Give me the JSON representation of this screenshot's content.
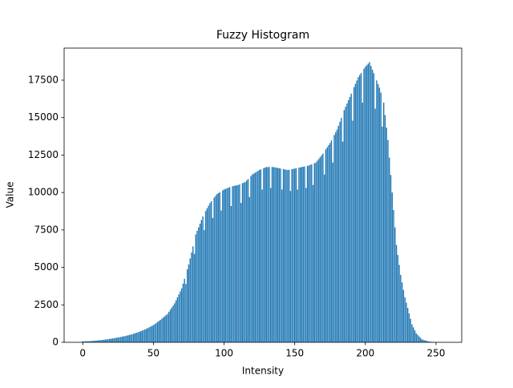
{
  "chart_data": {
    "type": "bar",
    "title": "Fuzzy Histogram",
    "xlabel": "Intensity",
    "ylabel": "Value",
    "color": "#1f77b4",
    "xlim": [
      -13.19,
      268.19
    ],
    "ylim": [
      0,
      19640
    ],
    "xticks": [
      0,
      50,
      100,
      150,
      200,
      250
    ],
    "yticks": [
      0,
      2500,
      5000,
      7500,
      10000,
      12500,
      15000,
      17500
    ],
    "x": [
      0,
      1,
      2,
      3,
      4,
      5,
      6,
      7,
      8,
      9,
      10,
      11,
      12,
      13,
      14,
      15,
      16,
      17,
      18,
      19,
      20,
      21,
      22,
      23,
      24,
      25,
      26,
      27,
      28,
      29,
      30,
      31,
      32,
      33,
      34,
      35,
      36,
      37,
      38,
      39,
      40,
      41,
      42,
      43,
      44,
      45,
      46,
      47,
      48,
      49,
      50,
      51,
      52,
      53,
      54,
      55,
      56,
      57,
      58,
      59,
      60,
      61,
      62,
      63,
      64,
      65,
      66,
      67,
      68,
      69,
      70,
      71,
      72,
      73,
      74,
      75,
      76,
      77,
      78,
      79,
      80,
      81,
      82,
      83,
      84,
      85,
      86,
      87,
      88,
      89,
      90,
      91,
      92,
      93,
      94,
      95,
      96,
      97,
      98,
      99,
      100,
      101,
      102,
      103,
      104,
      105,
      106,
      107,
      108,
      109,
      110,
      111,
      112,
      113,
      114,
      115,
      116,
      117,
      118,
      119,
      120,
      121,
      122,
      123,
      124,
      125,
      126,
      127,
      128,
      129,
      130,
      131,
      132,
      133,
      134,
      135,
      136,
      137,
      138,
      139,
      140,
      141,
      142,
      143,
      144,
      145,
      146,
      147,
      148,
      149,
      150,
      151,
      152,
      153,
      154,
      155,
      156,
      157,
      158,
      159,
      160,
      161,
      162,
      163,
      164,
      165,
      166,
      167,
      168,
      169,
      170,
      171,
      172,
      173,
      174,
      175,
      176,
      177,
      178,
      179,
      180,
      181,
      182,
      183,
      184,
      185,
      186,
      187,
      188,
      189,
      190,
      191,
      192,
      193,
      194,
      195,
      196,
      197,
      198,
      199,
      200,
      201,
      202,
      203,
      204,
      205,
      206,
      207,
      208,
      209,
      210,
      211,
      212,
      213,
      214,
      215,
      216,
      217,
      218,
      219,
      220,
      221,
      222,
      223,
      224,
      225,
      226,
      227,
      228,
      229,
      230,
      231,
      232,
      233,
      234,
      235,
      236,
      237,
      238,
      239,
      240,
      241,
      242,
      243,
      244,
      245,
      246,
      247,
      248,
      249,
      250,
      251,
      252,
      253,
      254,
      255
    ],
    "values": [
      60,
      64,
      68,
      72,
      76,
      80,
      88,
      96,
      104,
      112,
      120,
      130,
      140,
      150,
      160,
      170,
      184,
      198,
      212,
      226,
      240,
      256,
      272,
      288,
      304,
      320,
      340,
      360,
      380,
      400,
      420,
      444,
      468,
      492,
      516,
      540,
      572,
      604,
      636,
      668,
      700,
      740,
      780,
      820,
      860,
      900,
      950,
      1000,
      1050,
      1100,
      1150,
      1220,
      1290,
      1360,
      1430,
      1500,
      1580,
      1660,
      1740,
      1820,
      1900,
      2040,
      2180,
      2320,
      2460,
      2600,
      2800,
      3000,
      3200,
      3400,
      3600,
      3920,
      4240,
      3900,
      4880,
      5200,
      5600,
      6000,
      6400,
      5900,
      7200,
      7440,
      7680,
      7920,
      8160,
      8400,
      7500,
      8760,
      8940,
      9120,
      9300,
      9420,
      8300,
      9660,
      9780,
      9900,
      9960,
      10020,
      8800,
      10140,
      10200,
      10240,
      10280,
      10320,
      10360,
      9100,
      10420,
      10440,
      10460,
      10480,
      10500,
      10540,
      9300,
      10620,
      10660,
      10700,
      10800,
      10900,
      9700,
      11100,
      11200,
      11260,
      11320,
      11380,
      11440,
      11500,
      11540,
      10200,
      11620,
      11660,
      11700,
      11700,
      11700,
      10300,
      11700,
      11700,
      11680,
      11660,
      11640,
      11620,
      11600,
      10200,
      11560,
      11540,
      11520,
      11500,
      11520,
      10100,
      11560,
      11580,
      11600,
      11620,
      10200,
      11660,
      11680,
      11700,
      11720,
      11740,
      10300,
      11780,
      11800,
      11840,
      11880,
      10500,
      11960,
      12000,
      12120,
      12240,
      12360,
      12480,
      12600,
      11200,
      12880,
      13020,
      13160,
      13300,
      13480,
      12000,
      13840,
      14020,
      14200,
      14460,
      14720,
      14980,
      13400,
      15500,
      15720,
      15940,
      16160,
      16380,
      16600,
      14800,
      17040,
      17260,
      17480,
      17700,
      17840,
      17980,
      16000,
      18260,
      18400,
      18500,
      18600,
      18700,
      18450,
      18200,
      17960,
      15600,
      17480,
      17240,
      17000,
      16670,
      14400,
      16000,
      15170,
      14330,
      13500,
      12330,
      11170,
      10000,
      8830,
      7670,
      6500,
      5830,
      5170,
      4500,
      4000,
      3500,
      3000,
      2650,
      2300,
      1930,
      1570,
      1200,
      1000,
      800,
      600,
      500,
      400,
      300,
      200,
      170,
      140,
      110,
      80,
      50,
      42,
      34,
      26,
      18,
      10,
      8,
      6,
      4,
      2,
      0
    ]
  }
}
